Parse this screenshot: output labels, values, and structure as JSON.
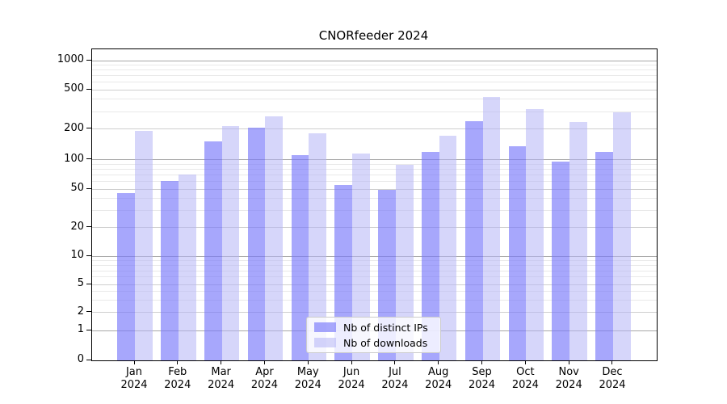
{
  "title": "CNORfeeder 2024",
  "chart_data": {
    "type": "bar",
    "title": "CNORfeeder 2024",
    "categories": [
      "Jan",
      "Feb",
      "Mar",
      "Apr",
      "May",
      "Jun",
      "Jul",
      "Aug",
      "Sep",
      "Oct",
      "Nov",
      "Dec"
    ],
    "year_label": "2024",
    "series": [
      {
        "name": "Nb of distinct IPs",
        "color": "rgba(120,120,250,0.65)",
        "values": [
          45,
          60,
          150,
          205,
          110,
          55,
          49,
          120,
          240,
          135,
          95,
          118
        ]
      },
      {
        "name": "Nb of downloads",
        "color": "rgba(180,180,245,0.55)",
        "values": [
          190,
          70,
          215,
          270,
          180,
          115,
          88,
          170,
          425,
          320,
          235,
          295
        ]
      }
    ],
    "yscale": "symlog",
    "ylim": [
      0,
      1300
    ],
    "yticks": [
      0,
      1,
      2,
      5,
      10,
      20,
      50,
      100,
      200,
      500,
      1000
    ],
    "grid": true,
    "legend_position": "lower-center"
  },
  "colors": {
    "major_grid": "#a8a8a8",
    "labeled_minor_grid": "#cfcfcf",
    "minor_grid": "#e9e9e9",
    "axis": "#000000",
    "legend_border": "#cccccc"
  }
}
